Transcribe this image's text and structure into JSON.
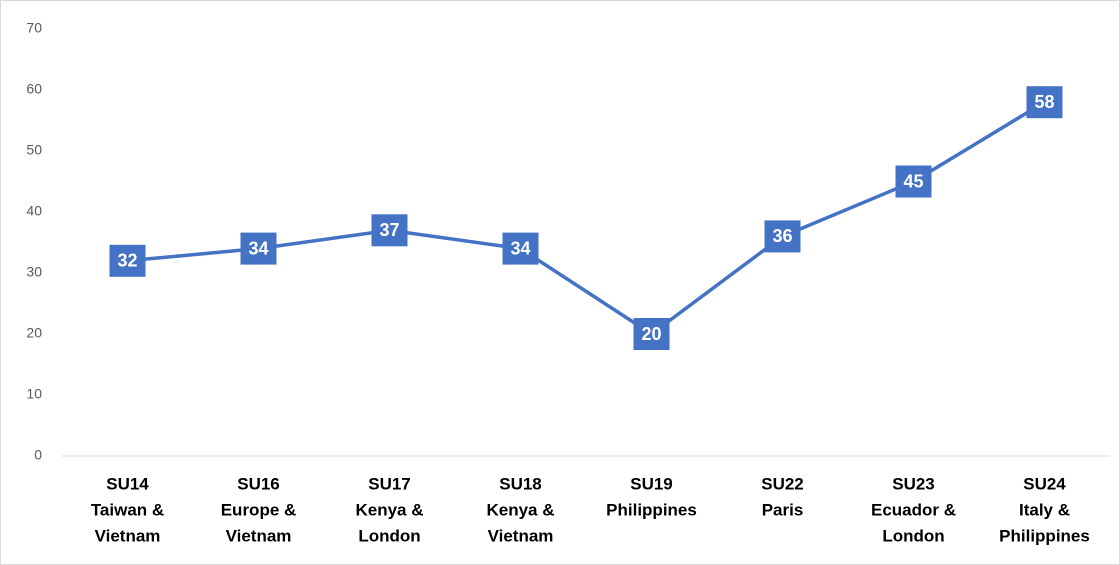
{
  "chart_data": {
    "type": "line",
    "categories": [
      [
        "SU14",
        "Taiwan &",
        "Vietnam"
      ],
      [
        "SU16",
        "Europe &",
        "Vietnam"
      ],
      [
        "SU17",
        "Kenya &",
        "London"
      ],
      [
        "SU18",
        "Kenya &",
        "Vietnam"
      ],
      [
        "SU19",
        "Philippines"
      ],
      [
        "SU22",
        "Paris"
      ],
      [
        "SU23",
        "Ecuador &",
        "London"
      ],
      [
        "SU24",
        "Italy &",
        "Philippines"
      ]
    ],
    "values": [
      32,
      34,
      37,
      34,
      20,
      36,
      45,
      58
    ],
    "color": "#4472c4",
    "ylim": [
      0,
      70
    ],
    "yticks": [
      0,
      10,
      20,
      30,
      40,
      50,
      60,
      70
    ],
    "grid": false
  }
}
